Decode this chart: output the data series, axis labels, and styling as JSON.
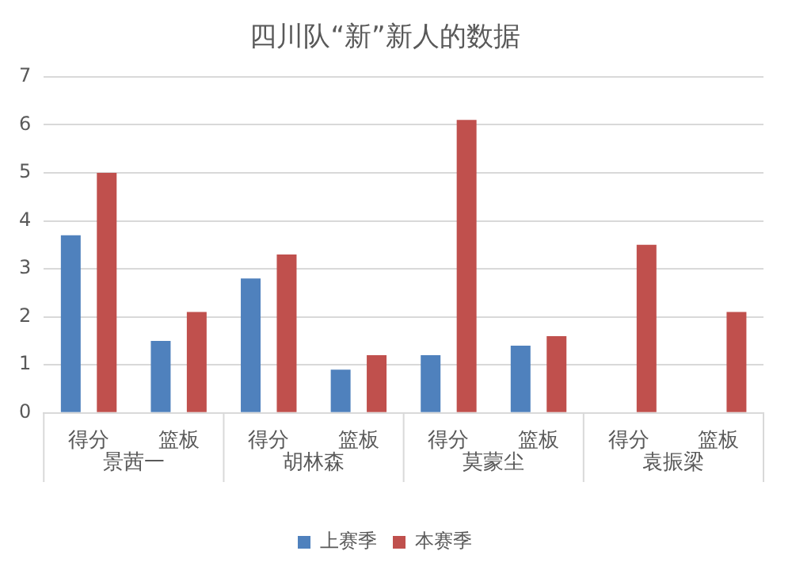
{
  "chart_data": {
    "type": "bar",
    "title": "四川队“新”新人的数据",
    "categories": [
      "得分",
      "篮板",
      "得分",
      "篮板",
      "得分",
      "篮板",
      "得分",
      "篮板"
    ],
    "annotations": [
      "景茜一",
      "胡林森",
      "莫蒙尘",
      "袁振梁"
    ],
    "series": [
      {
        "name": "上赛季",
        "color": "#4f81bd",
        "values": [
          3.7,
          1.5,
          2.8,
          0.9,
          1.2,
          1.4,
          null,
          null
        ]
      },
      {
        "name": "本赛季",
        "color": "#c0504d",
        "values": [
          5.0,
          2.1,
          3.3,
          1.2,
          6.1,
          1.6,
          3.5,
          2.1
        ]
      }
    ],
    "ylim": [
      0,
      7
    ],
    "yticks": [
      0,
      1,
      2,
      3,
      4,
      5,
      6,
      7
    ],
    "grid": "y",
    "legend": "bottom"
  }
}
